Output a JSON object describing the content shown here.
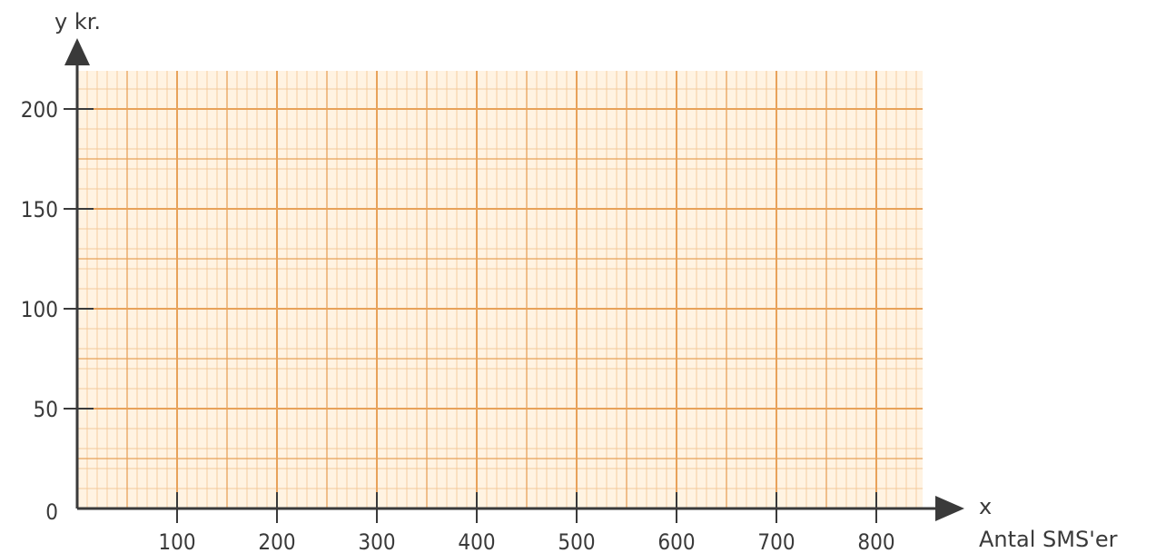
{
  "chart_data": {
    "type": "line",
    "title": "",
    "ylabel": "y kr.",
    "xlabel_var": "x",
    "xlabel": "Antal SMS'er",
    "xlim": [
      0,
      850
    ],
    "ylim": [
      0,
      220
    ],
    "x_ticks": [
      100,
      200,
      300,
      400,
      500,
      600,
      700,
      800
    ],
    "y_ticks": [
      0,
      50,
      100,
      150,
      200
    ],
    "x_tick_labels": [
      "100",
      "200",
      "300",
      "400",
      "500",
      "600",
      "700",
      "800"
    ],
    "y_tick_labels": [
      "0",
      "50",
      "100",
      "150",
      "200"
    ],
    "grid": true,
    "grid_color_major": "#e8a25a",
    "grid_color_minor": "#f3c89a",
    "background_color": "#fff3e2",
    "axis_color": "#3a3a3a",
    "series": []
  }
}
